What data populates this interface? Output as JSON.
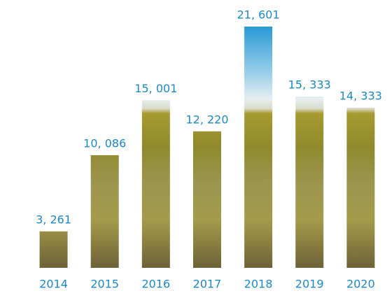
{
  "chart_data": {
    "type": "bar",
    "categories": [
      "2014",
      "2015",
      "2016",
      "2017",
      "2018",
      "2019",
      "2020"
    ],
    "values": [
      3261,
      10086,
      15001,
      12220,
      21601,
      15333,
      14333
    ],
    "value_labels": [
      "3, 261",
      "10, 086",
      "15, 001",
      "12, 220",
      "21, 601",
      "15, 333",
      "14, 333"
    ],
    "ylim": [
      0,
      22000
    ]
  }
}
